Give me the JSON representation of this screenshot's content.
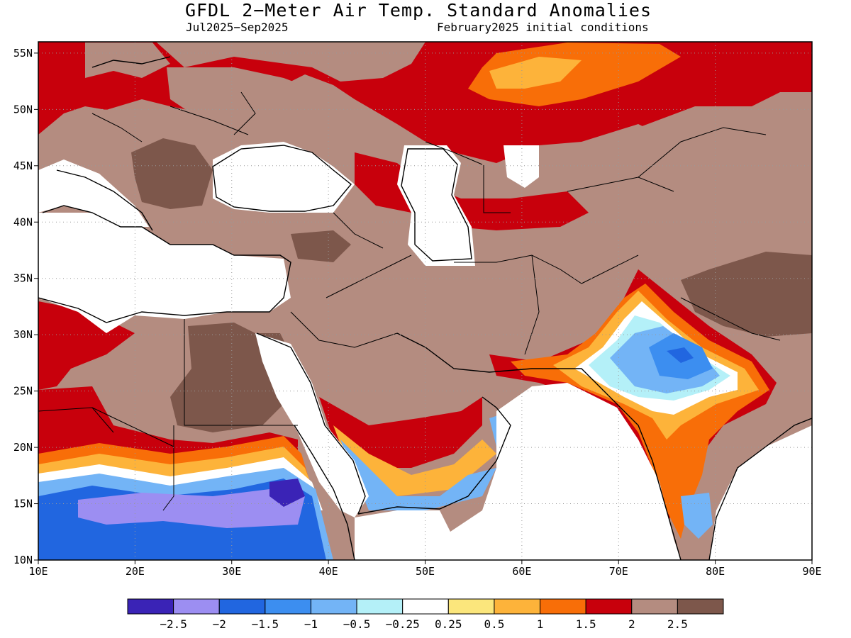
{
  "title": "GFDL 2−Meter Air Temp. Standard Anomalies",
  "subtitle_left": "Jul2025−Sep2025",
  "subtitle_right": "February2025 initial conditions",
  "map": {
    "lon_range": [
      10,
      90
    ],
    "lat_range": [
      10,
      56
    ],
    "lon_ticks": [
      "10E",
      "20E",
      "30E",
      "40E",
      "50E",
      "60E",
      "70E",
      "80E",
      "90E"
    ],
    "lat_ticks": [
      "10N",
      "15N",
      "20N",
      "25N",
      "30N",
      "35N",
      "40N",
      "45N",
      "50N",
      "55N"
    ],
    "grid": "dotted"
  },
  "colorbar": {
    "colors": [
      "#3a23b6",
      "#9c8ef2",
      "#2166e0",
      "#3c8ef0",
      "#73b4f6",
      "#b4f0f8",
      "#ffffff",
      "#fbe67c",
      "#fdb33a",
      "#f86e08",
      "#c8000c",
      "#b48c80",
      "#7d574b"
    ],
    "labels": [
      "−2.5",
      "−2",
      "−1.5",
      "−1",
      "−0.5",
      "−0.25",
      "0.25",
      "0.5",
      "1",
      "1.5",
      "2",
      "2.5"
    ]
  }
}
